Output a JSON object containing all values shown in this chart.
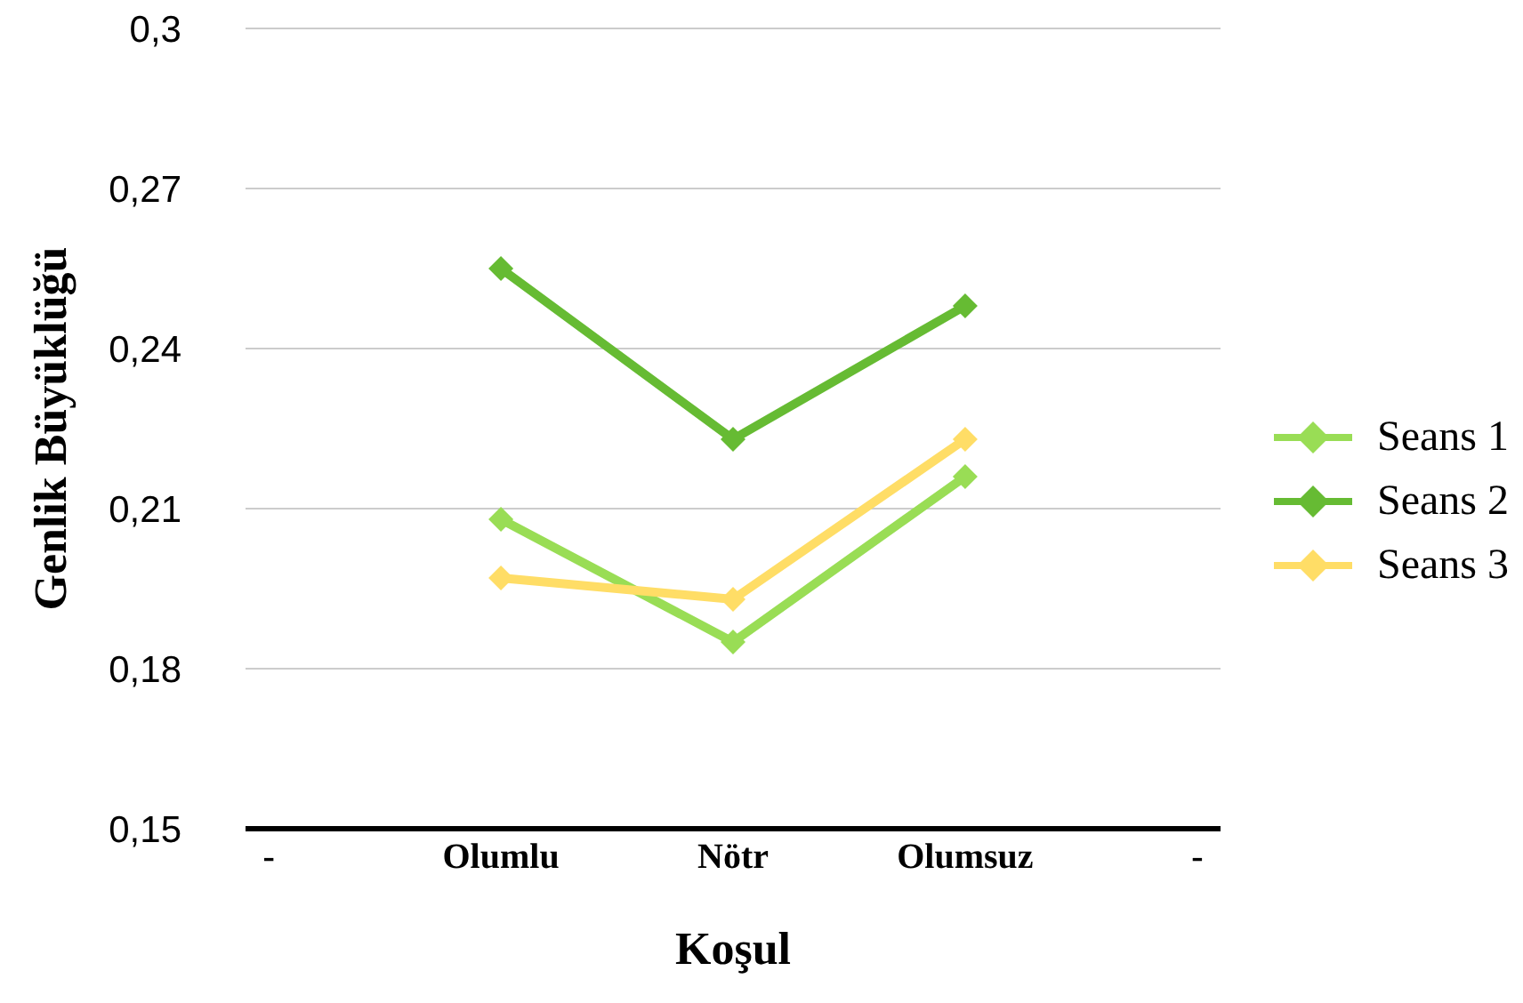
{
  "chart_data": {
    "type": "line",
    "xlabel": "Koşul",
    "ylabel": "Genlik Büyüklüğü",
    "categories": [
      "-",
      "Olumlu",
      "Nötr",
      "Olumsuz",
      "-"
    ],
    "series": [
      {
        "name": "Seans 1",
        "color": "#99dd55",
        "values": [
          null,
          0.208,
          0.185,
          0.216,
          null
        ]
      },
      {
        "name": "Seans 2",
        "color": "#66bb33",
        "values": [
          null,
          0.255,
          0.223,
          0.248,
          null
        ]
      },
      {
        "name": "Seans 3",
        "color": "#ffdd66",
        "values": [
          null,
          0.197,
          0.193,
          0.223,
          null
        ]
      }
    ],
    "ylim": [
      0.15,
      0.3
    ],
    "yticks": [
      {
        "value": 0.15,
        "label": "0,15"
      },
      {
        "value": 0.18,
        "label": "0,18"
      },
      {
        "value": 0.21,
        "label": "0,21"
      },
      {
        "value": 0.24,
        "label": "0,24"
      },
      {
        "value": 0.27,
        "label": "0,27"
      },
      {
        "value": 0.3,
        "label": "0,3"
      }
    ],
    "grid": "y",
    "legend": "right",
    "marker": "diamond",
    "line_style": "solid"
  }
}
